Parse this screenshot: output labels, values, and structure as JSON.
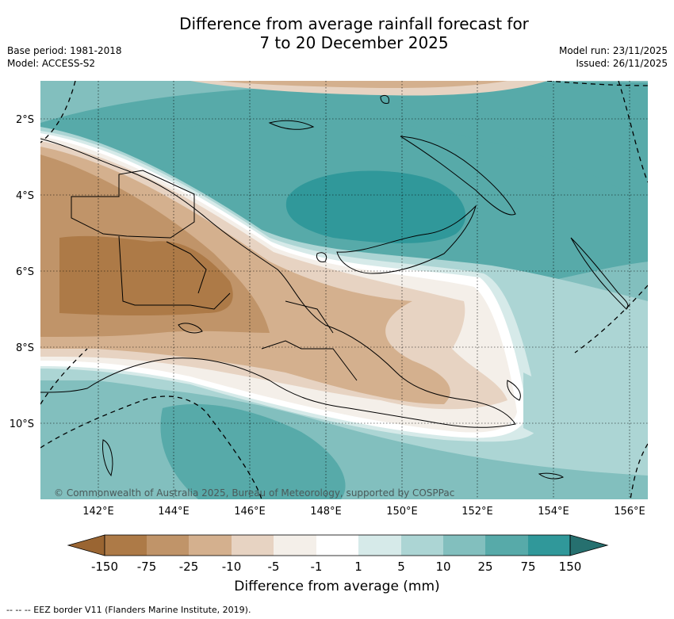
{
  "title": {
    "line1": "Difference from average rainfall forecast for",
    "line2": "7 to 20 December 2025"
  },
  "meta": {
    "base_period": "Base period: 1981-2018",
    "model": "Model: ACCESS-S2",
    "model_run": "Model run: 23/11/2025",
    "issued": "Issued: 26/11/2025"
  },
  "axes": {
    "lat_labels": [
      "2°S",
      "4°S",
      "6°S",
      "8°S",
      "10°S"
    ],
    "lon_labels": [
      "142°E",
      "144°E",
      "146°E",
      "148°E",
      "150°E",
      "152°E",
      "154°E",
      "156°E"
    ]
  },
  "copyright": "© Commonwealth of Australia 2025, Bureau of Meteorology, supported by COSPPac",
  "colorbar": {
    "title": "Difference from average (mm)",
    "ticks": [
      "-150",
      "-75",
      "-25",
      "-10",
      "-5",
      "-1",
      "1",
      "5",
      "10",
      "25",
      "75",
      "150"
    ],
    "colors": {
      "lt_m150": "#9a6532",
      "m150_m75": "#ad7a47",
      "m75_m25": "#c09469",
      "m25_m10": "#d4b08e",
      "m10_m5": "#e7d3c2",
      "m5_m1": "#f4efe9",
      "m1_1": "#ffffff",
      "p1_5": "#d6eae9",
      "p5_10": "#acd5d4",
      "p10_25": "#82bfbe",
      "p25_75": "#57aaa9",
      "p75_150": "#30989a",
      "gt_150": "#26706f"
    }
  },
  "footnote": "--  --  -- EEZ border V11 (Flanders Marine Institute, 2019)."
}
